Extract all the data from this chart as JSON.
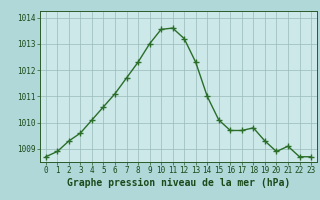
{
  "x": [
    0,
    1,
    2,
    3,
    4,
    5,
    6,
    7,
    8,
    9,
    10,
    11,
    12,
    13,
    14,
    15,
    16,
    17,
    18,
    19,
    20,
    21,
    22,
    23
  ],
  "y": [
    1008.7,
    1008.9,
    1009.3,
    1009.6,
    1010.1,
    1010.6,
    1011.1,
    1011.7,
    1012.3,
    1013.0,
    1013.55,
    1013.6,
    1013.2,
    1012.3,
    1011.0,
    1010.1,
    1009.7,
    1009.7,
    1009.8,
    1009.3,
    1008.9,
    1009.1,
    1008.7,
    1008.7
  ],
  "line_color": "#2a6e2a",
  "marker": "+",
  "marker_size": 4,
  "line_width": 1.0,
  "bg_color": "#b0d8d8",
  "plot_bg_color": "#cce8e8",
  "grid_color": "#99bbbb",
  "xlabel": "Graphe pression niveau de la mer (hPa)",
  "ylim": [
    1008.5,
    1014.25
  ],
  "xlim": [
    -0.5,
    23.5
  ],
  "yticks": [
    1009,
    1010,
    1011,
    1012,
    1013,
    1014
  ],
  "xticks": [
    0,
    1,
    2,
    3,
    4,
    5,
    6,
    7,
    8,
    9,
    10,
    11,
    12,
    13,
    14,
    15,
    16,
    17,
    18,
    19,
    20,
    21,
    22,
    23
  ],
  "tick_label_fontsize": 5.5,
  "xlabel_fontsize": 7.0,
  "tick_color": "#1a4a1a",
  "axis_color": "#2a5a2a"
}
